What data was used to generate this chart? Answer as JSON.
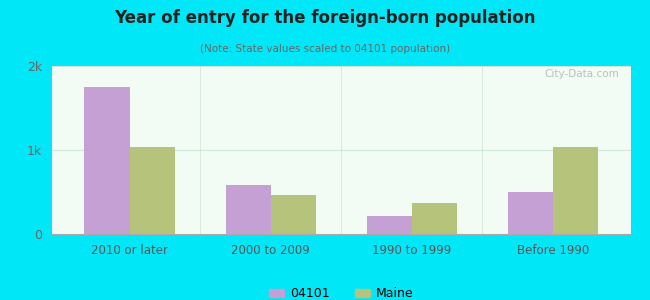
{
  "title": "Year of entry for the foreign-born population",
  "subtitle": "(Note: State values scaled to 04101 population)",
  "categories": [
    "2010 or later",
    "2000 to 2009",
    "1990 to 1999",
    "Before 1990"
  ],
  "values_04101": [
    1750,
    580,
    220,
    500
  ],
  "values_maine": [
    1040,
    460,
    370,
    1030
  ],
  "color_04101": "#c4a0d4",
  "color_maine": "#b5c47a",
  "background_outer": "#00e8f8",
  "background_inner": "#eaf7ee",
  "ylim": [
    0,
    2000
  ],
  "yticks": [
    0,
    1000,
    2000
  ],
  "ytick_labels": [
    "0",
    "1k",
    "2k"
  ],
  "bar_width": 0.32,
  "legend_labels": [
    "04101",
    "Maine"
  ],
  "watermark": "City-Data.com"
}
